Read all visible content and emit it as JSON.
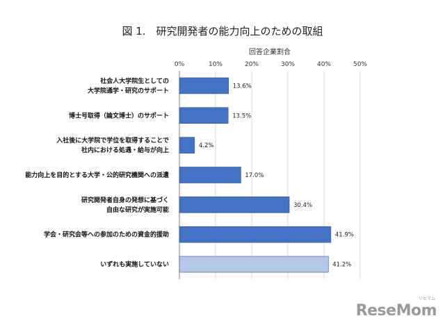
{
  "chart_data": {
    "type": "bar",
    "orientation": "horizontal",
    "title": "図 1.　研究開発者の能力向上のための取組",
    "xlabel": "回答企業割合",
    "xlim": [
      0,
      50
    ],
    "xticks": [
      "0%",
      "10%",
      "20%",
      "30%",
      "40%",
      "50%"
    ],
    "grid": true,
    "categories": [
      [
        "社会人大学院生としての",
        "大学院通学・研究のサポート"
      ],
      [
        "博士号取得（論文博士）のサポート"
      ],
      [
        "入社後に大学院で学位を取得することで",
        "社内における処遇・給与が向上"
      ],
      [
        "能力向上を目的とする大学・公的研究機関への派遣"
      ],
      [
        "研究開発者自身の発想に基づく",
        "自由な研究が実施可能"
      ],
      [
        "学会・研究会等への参加のための資金的援助"
      ],
      [
        "いずれも実施していない"
      ]
    ],
    "values": [
      13.6,
      13.5,
      4.2,
      17.0,
      30.4,
      41.9,
      41.2
    ],
    "value_labels": [
      "13.6%",
      "13.5%",
      "4.2%",
      "17.0%",
      "30.4%",
      "41.9%",
      "41.2%"
    ],
    "colors": [
      "#4472c4",
      "#4472c4",
      "#4472c4",
      "#4472c4",
      "#4472c4",
      "#4472c4",
      "#b4c7e7"
    ],
    "bar_stroke": "#2f528f"
  },
  "logo": {
    "text": "ReseMom",
    "ruby": "リセマム"
  }
}
